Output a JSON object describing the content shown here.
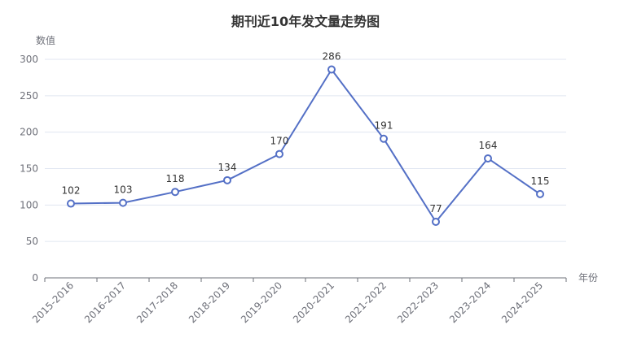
{
  "chart_data": {
    "type": "line",
    "title": "期刊近10年发文量走势图",
    "xlabel": "年份",
    "ylabel": "数值",
    "categories": [
      "2015-2016",
      "2016-2017",
      "2017-2018",
      "2018-2019",
      "2019-2020",
      "2020-2021",
      "2021-2022",
      "2022-2023",
      "2023-2024",
      "2024-2025"
    ],
    "series": [
      {
        "values": [
          102,
          103,
          118,
          134,
          170,
          286,
          191,
          77,
          164,
          115
        ]
      }
    ],
    "ylim": [
      0,
      300
    ],
    "yticks": [
      0,
      50,
      100,
      150,
      200,
      250,
      300
    ],
    "grid": true,
    "data_labels": true,
    "colors": {
      "line": "#5470c6",
      "marker_fill": "#ffffff"
    }
  }
}
